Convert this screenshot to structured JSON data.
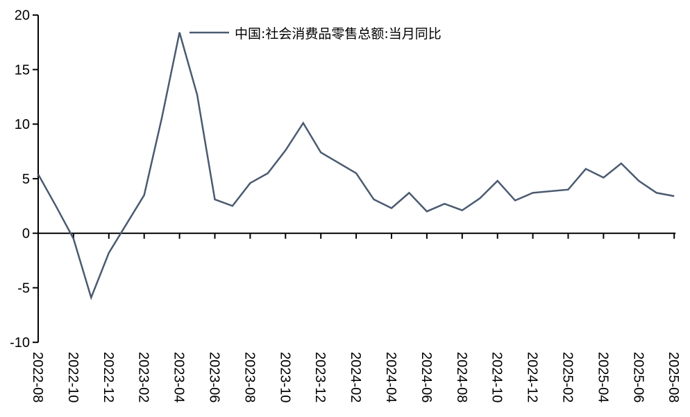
{
  "chart_data": {
    "type": "line",
    "title": "",
    "xlabel": "",
    "ylabel": "",
    "ylim": [
      -10,
      20
    ],
    "yticks": [
      20,
      15,
      10,
      5,
      0,
      -5,
      -10
    ],
    "grid": false,
    "legend_position": "top-center",
    "xtick_labels": [
      "2022-08",
      "2022-10",
      "2022-12",
      "2023-02",
      "2023-04",
      "2023-06",
      "2023-08",
      "2023-10",
      "2023-12",
      "2024-02",
      "2024-04",
      "2024-06",
      "2024-08",
      "2024-10",
      "2024-12",
      "2025-02",
      "2025-04",
      "2025-06",
      "2025-08"
    ],
    "series": [
      {
        "name": "中国:社会消费品零售总额:当月同比",
        "color": "#4a5a70",
        "x": [
          "2022-08",
          "2022-09",
          "2022-10",
          "2022-11",
          "2022-12",
          "2023-02",
          "2023-03",
          "2023-04",
          "2023-05",
          "2023-06",
          "2023-07",
          "2023-08",
          "2023-09",
          "2023-10",
          "2023-11",
          "2023-12",
          "2024-02",
          "2024-03",
          "2024-04",
          "2024-05",
          "2024-06",
          "2024-07",
          "2024-08",
          "2024-09",
          "2024-10",
          "2024-11",
          "2024-12",
          "2025-02",
          "2025-03",
          "2025-04",
          "2025-05",
          "2025-06",
          "2025-07",
          "2025-08"
        ],
        "month_index": [
          0,
          1,
          2,
          3,
          4,
          6,
          7,
          8,
          9,
          10,
          11,
          12,
          13,
          14,
          15,
          16,
          18,
          19,
          20,
          21,
          22,
          23,
          24,
          25,
          26,
          27,
          28,
          30,
          31,
          32,
          33,
          34,
          35,
          36
        ],
        "values": [
          5.4,
          2.5,
          -0.5,
          -5.9,
          -1.8,
          3.5,
          10.6,
          18.4,
          12.7,
          3.1,
          2.5,
          4.6,
          5.5,
          7.6,
          10.1,
          7.4,
          5.5,
          3.1,
          2.3,
          3.7,
          2.0,
          2.7,
          2.1,
          3.2,
          4.8,
          3.0,
          3.7,
          4.0,
          5.9,
          5.1,
          6.4,
          4.8,
          3.7,
          3.4
        ]
      }
    ]
  }
}
